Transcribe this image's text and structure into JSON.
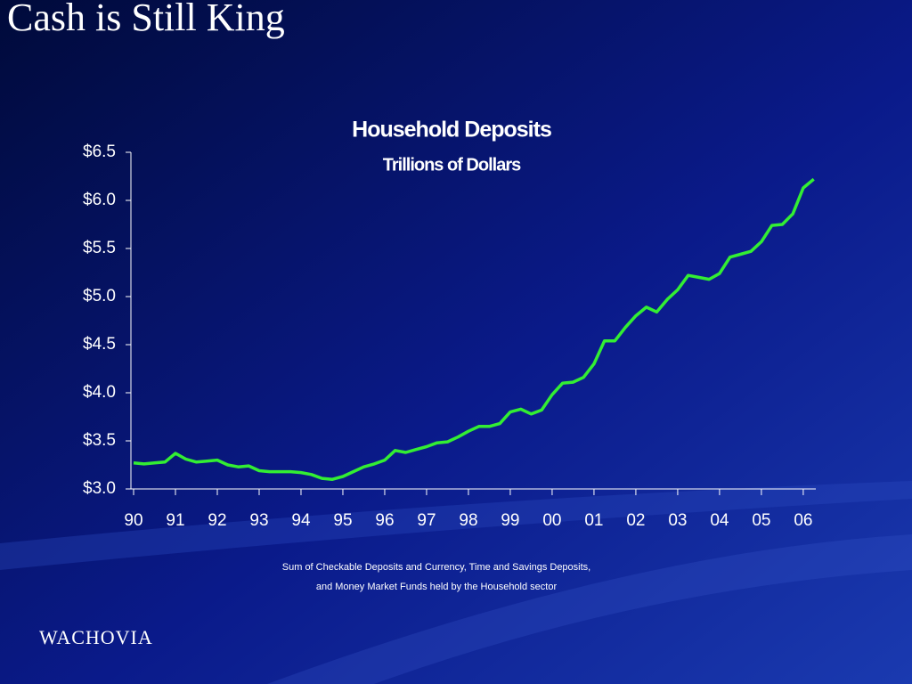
{
  "slide_title": "Cash is Still King",
  "logo": "WACHOVIA",
  "chart_data": {
    "type": "line",
    "title": "Household Deposits",
    "subtitle": "Trillions of Dollars",
    "note": [
      "Sum of Checkable Deposits and Currency, Time and Savings Deposits,",
      "and Money Market Funds held by the Household sector"
    ],
    "x": [
      1990,
      1990.25,
      1990.5,
      1990.75,
      1991,
      1991.25,
      1991.5,
      1991.75,
      1992,
      1992.25,
      1992.5,
      1992.75,
      1993,
      1993.25,
      1993.5,
      1993.75,
      1994,
      1994.25,
      1994.5,
      1994.75,
      1995,
      1995.25,
      1995.5,
      1995.75,
      1996,
      1996.25,
      1996.5,
      1996.75,
      1997,
      1997.25,
      1997.5,
      1997.75,
      1998,
      1998.25,
      1998.5,
      1998.75,
      1999,
      1999.25,
      1999.5,
      1999.75,
      2000,
      2000.25,
      2000.5,
      2000.75,
      2001,
      2001.25,
      2001.5,
      2001.75,
      2002,
      2002.25,
      2002.5,
      2002.75,
      2003,
      2003.25,
      2003.5,
      2003.75,
      2004,
      2004.25,
      2004.5,
      2004.75,
      2005,
      2005.25,
      2005.5,
      2005.75,
      2006,
      2006.25
    ],
    "series": [
      {
        "name": "Household Deposits",
        "color": "#33ee33",
        "values": [
          3.27,
          3.26,
          3.27,
          3.28,
          3.37,
          3.31,
          3.28,
          3.29,
          3.3,
          3.25,
          3.23,
          3.24,
          3.19,
          3.18,
          3.18,
          3.18,
          3.17,
          3.15,
          3.11,
          3.1,
          3.13,
          3.18,
          3.23,
          3.26,
          3.3,
          3.4,
          3.38,
          3.41,
          3.44,
          3.48,
          3.49,
          3.54,
          3.6,
          3.65,
          3.65,
          3.68,
          3.8,
          3.83,
          3.78,
          3.82,
          3.98,
          4.1,
          4.11,
          4.16,
          4.3,
          4.54,
          4.54,
          4.68,
          4.8,
          4.89,
          4.84,
          4.97,
          5.07,
          5.22,
          5.2,
          5.18,
          5.24,
          5.41,
          5.44,
          5.47,
          5.57,
          5.74,
          5.75,
          5.86,
          6.13,
          6.22
        ]
      }
    ],
    "xlim": [
      1990,
      2006.3
    ],
    "ylim": [
      3.0,
      6.5
    ],
    "xticks": [
      {
        "value": 1990,
        "label": "90"
      },
      {
        "value": 1991,
        "label": "91"
      },
      {
        "value": 1992,
        "label": "92"
      },
      {
        "value": 1993,
        "label": "93"
      },
      {
        "value": 1994,
        "label": "94"
      },
      {
        "value": 1995,
        "label": "95"
      },
      {
        "value": 1996,
        "label": "96"
      },
      {
        "value": 1997,
        "label": "97"
      },
      {
        "value": 1998,
        "label": "98"
      },
      {
        "value": 1999,
        "label": "99"
      },
      {
        "value": 2000,
        "label": "00"
      },
      {
        "value": 2001,
        "label": "01"
      },
      {
        "value": 2002,
        "label": "02"
      },
      {
        "value": 2003,
        "label": "03"
      },
      {
        "value": 2004,
        "label": "04"
      },
      {
        "value": 2005,
        "label": "05"
      },
      {
        "value": 2006,
        "label": "06"
      }
    ],
    "yticks": [
      {
        "value": 3.0,
        "label": "$3.0"
      },
      {
        "value": 3.5,
        "label": "$3.5"
      },
      {
        "value": 4.0,
        "label": "$4.0"
      },
      {
        "value": 4.5,
        "label": "$4.5"
      },
      {
        "value": 5.0,
        "label": "$5.0"
      },
      {
        "value": 5.5,
        "label": "$5.5"
      },
      {
        "value": 6.0,
        "label": "$6.0"
      },
      {
        "value": 6.5,
        "label": "$6.5"
      }
    ],
    "grid": false
  }
}
